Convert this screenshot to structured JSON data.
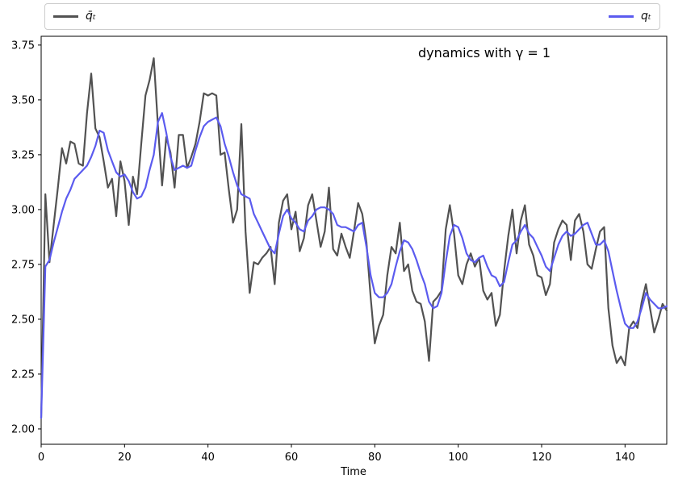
{
  "figure": {
    "background": "#ffffff",
    "annotation": "dynamics with γ = 1",
    "xlabel": "Time"
  },
  "legend": {
    "entries": [
      {
        "label": "q̄ₜ",
        "color": "#525252"
      },
      {
        "label": "qₜ",
        "color": "#5b5bef"
      }
    ]
  },
  "chart_data": {
    "type": "line",
    "title": "dynamics with γ = 1",
    "xlabel": "Time",
    "ylabel": "",
    "grid": false,
    "legend_position": "top strip, expanded across full axes width",
    "xlim": [
      0,
      150
    ],
    "ylim": [
      1.93,
      3.79
    ],
    "xticks": [
      0,
      20,
      40,
      60,
      80,
      100,
      120,
      140
    ],
    "yticks": [
      "2.00",
      "2.25",
      "2.50",
      "2.75",
      "3.00",
      "3.25",
      "3.50",
      "3.75"
    ],
    "x_start": 0,
    "x_step": 1,
    "series": [
      {
        "name": "q̄ₜ",
        "color": "#525252",
        "linewidth": 2.2,
        "values": [
          2.05,
          3.07,
          2.76,
          2.93,
          3.1,
          3.28,
          3.21,
          3.31,
          3.3,
          3.21,
          3.2,
          3.44,
          3.62,
          3.37,
          3.33,
          3.22,
          3.1,
          3.14,
          2.97,
          3.22,
          3.13,
          2.93,
          3.15,
          3.07,
          3.3,
          3.52,
          3.59,
          3.69,
          3.38,
          3.11,
          3.33,
          3.26,
          3.1,
          3.34,
          3.34,
          3.19,
          3.24,
          3.3,
          3.4,
          3.53,
          3.52,
          3.53,
          3.52,
          3.25,
          3.26,
          3.09,
          2.94,
          3.0,
          3.39,
          2.9,
          2.62,
          2.76,
          2.75,
          2.78,
          2.8,
          2.83,
          2.66,
          2.94,
          3.04,
          3.07,
          2.91,
          2.99,
          2.81,
          2.87,
          3.02,
          3.07,
          2.95,
          2.83,
          2.9,
          3.1,
          2.82,
          2.79,
          2.89,
          2.83,
          2.78,
          2.9,
          3.03,
          2.98,
          2.85,
          2.6,
          2.39,
          2.47,
          2.52,
          2.7,
          2.83,
          2.8,
          2.94,
          2.72,
          2.75,
          2.63,
          2.58,
          2.57,
          2.49,
          2.31,
          2.58,
          2.6,
          2.63,
          2.91,
          3.02,
          2.89,
          2.7,
          2.66,
          2.75,
          2.8,
          2.74,
          2.78,
          2.63,
          2.59,
          2.62,
          2.47,
          2.52,
          2.72,
          2.88,
          3.0,
          2.8,
          2.95,
          3.02,
          2.84,
          2.79,
          2.7,
          2.69,
          2.61,
          2.66,
          2.85,
          2.91,
          2.95,
          2.93,
          2.77,
          2.95,
          2.98,
          2.9,
          2.75,
          2.73,
          2.82,
          2.9,
          2.92,
          2.55,
          2.38,
          2.3,
          2.33,
          2.29,
          2.46,
          2.49,
          2.46,
          2.58,
          2.66,
          2.55,
          2.44,
          2.5,
          2.57,
          2.54
        ]
      },
      {
        "name": "qₜ",
        "color": "#5b5bef",
        "linewidth": 2.2,
        "values": [
          2.05,
          2.74,
          2.77,
          2.85,
          2.92,
          2.99,
          3.05,
          3.09,
          3.14,
          3.16,
          3.18,
          3.2,
          3.24,
          3.29,
          3.36,
          3.35,
          3.27,
          3.22,
          3.17,
          3.15,
          3.16,
          3.13,
          3.08,
          3.05,
          3.06,
          3.1,
          3.18,
          3.25,
          3.4,
          3.44,
          3.35,
          3.24,
          3.18,
          3.19,
          3.2,
          3.19,
          3.2,
          3.27,
          3.33,
          3.38,
          3.4,
          3.41,
          3.42,
          3.38,
          3.3,
          3.24,
          3.17,
          3.11,
          3.07,
          3.06,
          3.05,
          2.98,
          2.94,
          2.9,
          2.86,
          2.82,
          2.8,
          2.89,
          2.97,
          3.0,
          2.96,
          2.94,
          2.91,
          2.9,
          2.95,
          2.97,
          3.0,
          3.01,
          3.01,
          3.0,
          2.98,
          2.93,
          2.92,
          2.92,
          2.91,
          2.9,
          2.93,
          2.94,
          2.83,
          2.7,
          2.62,
          2.6,
          2.6,
          2.62,
          2.66,
          2.74,
          2.81,
          2.86,
          2.85,
          2.82,
          2.77,
          2.71,
          2.66,
          2.58,
          2.55,
          2.56,
          2.62,
          2.76,
          2.88,
          2.93,
          2.92,
          2.87,
          2.8,
          2.77,
          2.76,
          2.78,
          2.79,
          2.74,
          2.7,
          2.69,
          2.65,
          2.67,
          2.76,
          2.84,
          2.86,
          2.9,
          2.93,
          2.89,
          2.87,
          2.83,
          2.79,
          2.74,
          2.72,
          2.78,
          2.84,
          2.88,
          2.9,
          2.88,
          2.89,
          2.91,
          2.93,
          2.94,
          2.89,
          2.84,
          2.84,
          2.86,
          2.81,
          2.72,
          2.63,
          2.55,
          2.48,
          2.46,
          2.46,
          2.49,
          2.55,
          2.62,
          2.59,
          2.57,
          2.55,
          2.55,
          2.56
        ]
      }
    ]
  }
}
